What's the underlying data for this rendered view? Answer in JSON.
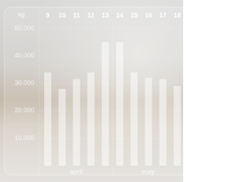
{
  "chart_data": {
    "type": "bar",
    "unit": "kg",
    "categories": [
      "9",
      "10",
      "11",
      "12",
      "13",
      "14",
      "15",
      "16",
      "17",
      "18"
    ],
    "values": [
      34000,
      28000,
      31500,
      34000,
      45000,
      45000,
      34000,
      32000,
      31500,
      29000
    ],
    "color": "#ffffff",
    "ylim": [
      0,
      50000
    ],
    "yticks": [
      {
        "value": 10000,
        "label": "10.000"
      },
      {
        "value": 20000,
        "label": "20.000"
      },
      {
        "value": 30000,
        "label": "30.000"
      },
      {
        "value": 40000,
        "label": "40.000"
      },
      {
        "value": 50000,
        "label": "50.000"
      }
    ],
    "grid": true,
    "months": [
      "april",
      "may"
    ]
  }
}
